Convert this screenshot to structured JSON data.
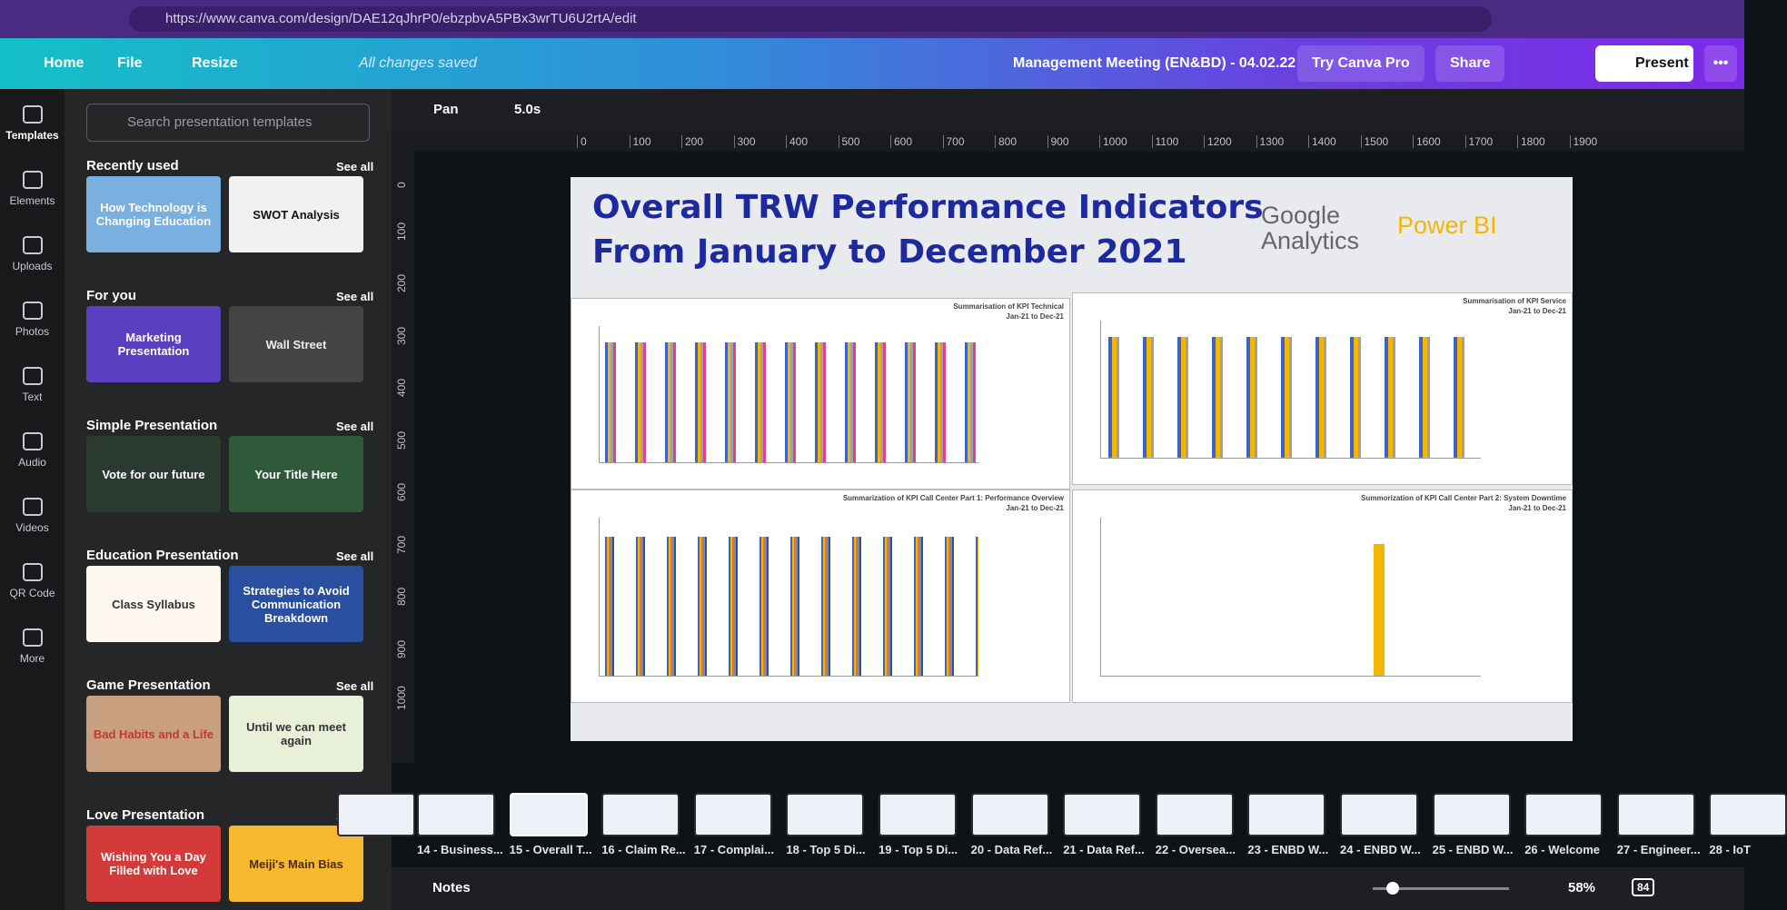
{
  "browser": {
    "url": "https://www.canva.com/design/DAE12qJhrP0/ebzpbvA5PBx3wrTU6U2rtA/edit"
  },
  "toolbar": {
    "home": "Home",
    "file": "File",
    "resize": "Resize",
    "status": "All changes saved",
    "doc_title": "Management Meeting (EN&BD)  -  04.02.22",
    "try_pro": "Try Canva Pro",
    "share": "Share",
    "present": "Present"
  },
  "sidebar": [
    "Templates",
    "Elements",
    "Uploads",
    "Photos",
    "Text",
    "Audio",
    "Videos",
    "QR Code",
    "More"
  ],
  "panel": {
    "search": "Search presentation templates",
    "see_all": "See all",
    "sections": [
      {
        "title": "Recently used",
        "thumbs": [
          "How Technology is Changing Education",
          "SWOT Analysis"
        ]
      },
      {
        "title": "For you",
        "thumbs": [
          "Marketing Presentation",
          "Wall Street"
        ]
      },
      {
        "title": "Simple Presentation",
        "thumbs": [
          "Vote for our future",
          "Your Title Here"
        ]
      },
      {
        "title": "Education Presentation",
        "thumbs": [
          "Class Syllabus",
          "Strategies to Avoid Communication Breakdown"
        ]
      },
      {
        "title": "Game Presentation",
        "thumbs": [
          "Bad Habits and a Life",
          "Until we can meet again"
        ]
      },
      {
        "title": "Love Presentation",
        "thumbs": [
          "Wishing You a Day Filled with Love",
          "Meiji's Main Bias"
        ]
      }
    ]
  },
  "editor": {
    "pan": "Pan",
    "duration": "5.0s"
  },
  "ruler": {
    "h": [
      "0",
      "100",
      "200",
      "300",
      "400",
      "500",
      "600",
      "700",
      "800",
      "900",
      "1000",
      "1100",
      "1200",
      "1300",
      "1400",
      "1500",
      "1600",
      "1700",
      "1800",
      "1900"
    ],
    "v": [
      "0",
      "100",
      "200",
      "300",
      "400",
      "500",
      "600",
      "700",
      "800",
      "900",
      "1000"
    ]
  },
  "slide": {
    "title": [
      "Overall TRW Performance Indicators",
      "From January to December 2021"
    ],
    "logo1": "Google Analytics",
    "logo2": "Power BI",
    "charts": [
      {
        "title": "Summarisation of KPI Technical",
        "subtitle": "Jan-21 to Dec-21"
      },
      {
        "title": "Summarisation of KPI Service",
        "subtitle": "Jan-21 to Dec-21"
      },
      {
        "title": "Summarization of KPI Call Center Part 1: Performance Overview",
        "subtitle": "Jan-21 to Dec-21"
      },
      {
        "title": "Summorization of KPI Call Center Part 2: System Downtime",
        "subtitle": "Jan-21 to Dec-21"
      }
    ]
  },
  "pages": [
    "14 - Business...",
    "15 - Overall T...",
    "16 - Claim Re...",
    "17 - Complai...",
    "18 - Top 5 Di...",
    "19 - Top 5 Di...",
    "20 - Data Ref...",
    "21 - Data Ref...",
    "22 - Oversea...",
    "23 - ENBD W...",
    "24 - ENBD W...",
    "25 - ENBD W...",
    "26 - Welcome",
    "27 - Engineer...",
    "28 - IoT"
  ],
  "bottom": {
    "notes": "Notes",
    "zoom": "58%",
    "page_count": "84"
  }
}
